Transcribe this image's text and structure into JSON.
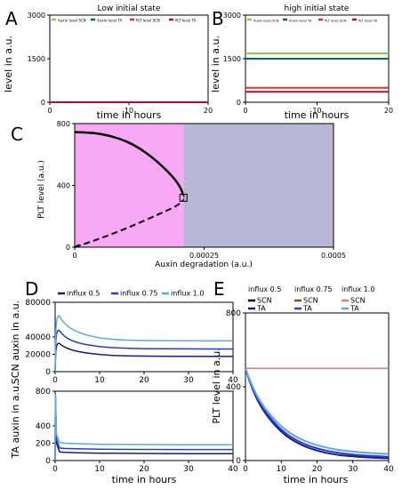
{
  "figure": {
    "panel_letters": [
      "A",
      "B",
      "C",
      "D",
      "E"
    ],
    "colors": {
      "auxin_scn": "#8cc63f",
      "auxin_ta": "#006b5a",
      "plt_scn": "#e8302a",
      "plt_ta": "#b01020",
      "region_left": "#f9a8f4",
      "region_right": "#b8b8d6",
      "influx_05": "#1a1a80",
      "influx_075": "#2a3ad0",
      "influx_10": "#5aa8e8",
      "scn_05": "#000000",
      "scn_075": "#7a4a2a",
      "scn_10": "#e87a7a"
    }
  },
  "chart_data": [
    {
      "panel": "A",
      "type": "line",
      "title": "Low initial state",
      "xlabel": "time in hours",
      "ylabel": "level in a.u.",
      "xlim": [
        0,
        20
      ],
      "ylim": [
        0,
        3000
      ],
      "xticks": [
        "0",
        "10",
        "20"
      ],
      "yticks": [
        "0",
        "1500",
        "3000"
      ],
      "legend": [
        "Auxin level SCN",
        "Auxin level TA",
        "PLT level SCN",
        "PLT level TA"
      ],
      "series": [
        {
          "name": "Auxin level SCN",
          "x": [
            0,
            20
          ],
          "values": [
            0,
            0
          ]
        },
        {
          "name": "Auxin level TA",
          "x": [
            0,
            20
          ],
          "values": [
            0,
            0
          ]
        },
        {
          "name": "PLT level SCN",
          "x": [
            0,
            20
          ],
          "values": [
            0,
            0
          ]
        },
        {
          "name": "PLT level TA",
          "x": [
            0,
            20
          ],
          "values": [
            0,
            0
          ]
        }
      ]
    },
    {
      "panel": "B",
      "type": "line",
      "title": "high initial state",
      "xlabel": "time in hours",
      "ylabel": "level in a.u.",
      "xlim": [
        0,
        20
      ],
      "ylim": [
        0,
        3000
      ],
      "xticks": [
        "0",
        "10",
        "20"
      ],
      "yticks": [
        "0",
        "1500",
        "3000"
      ],
      "legend": [
        "Auxin level SCN",
        "Auxin level TA",
        "PLT level SCN",
        "PLT level TA"
      ],
      "series": [
        {
          "name": "Auxin level SCN",
          "x": [
            0,
            20
          ],
          "values": [
            1680,
            1680
          ]
        },
        {
          "name": "Auxin level TA",
          "x": [
            0,
            20
          ],
          "values": [
            1500,
            1500
          ]
        },
        {
          "name": "PLT level SCN",
          "x": [
            0,
            20
          ],
          "values": [
            500,
            500
          ]
        },
        {
          "name": "PLT level TA",
          "x": [
            0,
            20
          ],
          "values": [
            360,
            360
          ]
        }
      ]
    },
    {
      "panel": "C",
      "type": "line",
      "xlabel": "Auxin degradation (a.u.)",
      "ylabel": "PLT level (a.u.)",
      "xlim": [
        0,
        0.0005
      ],
      "ylim": [
        0,
        800
      ],
      "xticks": [
        "0",
        "0.00025",
        "0.0005"
      ],
      "yticks": [
        "0",
        "400",
        "800"
      ],
      "region_boundary": 0.00021,
      "stable_branch": {
        "x": [
          0,
          4e-05,
          8e-05,
          0.00012,
          0.00016,
          0.00019,
          0.000205,
          0.00021
        ],
        "values": [
          745,
          740,
          712,
          655,
          555,
          455,
          385,
          330
        ]
      },
      "unstable_branch": {
        "x": [
          0,
          4e-05,
          8e-05,
          0.00012,
          0.00016,
          0.00019,
          0.000205,
          0.00021
        ],
        "values": [
          0,
          45,
          95,
          150,
          210,
          255,
          285,
          310
        ]
      },
      "fold_point": {
        "x": 0.00021,
        "y": 320
      }
    },
    {
      "panel": "D-top",
      "type": "line",
      "ylabel": "SCN auxin in a.u.",
      "xlim": [
        0,
        40
      ],
      "ylim": [
        0,
        80000
      ],
      "xticks": [
        "0",
        "10",
        "20",
        "30",
        "40"
      ],
      "yticks": [
        "0",
        "20000",
        "40000",
        "80000"
      ],
      "legend": [
        "influx 0.5",
        "influx 0.75",
        "influx 1.0"
      ],
      "series": [
        {
          "name": "influx 0.5",
          "x": [
            0,
            0.2,
            2,
            5,
            10,
            15,
            20,
            30,
            40
          ],
          "values": [
            0,
            36000,
            28000,
            23000,
            19500,
            18300,
            17800,
            17500,
            17500
          ]
        },
        {
          "name": "influx 0.75",
          "x": [
            0,
            0.2,
            2,
            5,
            10,
            15,
            20,
            30,
            40
          ],
          "values": [
            0,
            53000,
            40000,
            33000,
            28500,
            27000,
            26500,
            26200,
            26200
          ]
        },
        {
          "name": "influx 1.0",
          "x": [
            0,
            0.2,
            2,
            5,
            10,
            15,
            20,
            30,
            40
          ],
          "values": [
            0,
            71000,
            55000,
            45000,
            38500,
            36500,
            35800,
            35500,
            35500
          ]
        }
      ]
    },
    {
      "panel": "D-bottom",
      "type": "line",
      "xlabel": "time in hours",
      "ylabel": "TA auxin in a.u.",
      "xlim": [
        0,
        40
      ],
      "ylim": [
        0,
        800
      ],
      "xticks": [
        "0",
        "10",
        "20",
        "30",
        "40"
      ],
      "yticks": [
        "0",
        "200",
        "400",
        "800"
      ],
      "series": [
        {
          "name": "influx 0.5",
          "x": [
            0,
            0.05,
            0.3,
            1,
            2,
            5,
            10,
            20,
            30,
            40
          ],
          "values": [
            0,
            760,
            200,
            100,
            95,
            90,
            85,
            82,
            80,
            80
          ]
        },
        {
          "name": "influx 0.75",
          "x": [
            0,
            0.05,
            0.3,
            1,
            2,
            5,
            10,
            20,
            30,
            40
          ],
          "values": [
            0,
            760,
            250,
            145,
            140,
            135,
            130,
            128,
            127,
            127
          ]
        },
        {
          "name": "influx 1.0",
          "x": [
            0,
            0.05,
            0.3,
            1,
            2,
            5,
            10,
            20,
            30,
            40
          ],
          "values": [
            0,
            760,
            300,
            210,
            200,
            195,
            188,
            185,
            183,
            182
          ]
        }
      ]
    },
    {
      "panel": "E",
      "type": "line",
      "xlabel": "time in hours",
      "ylabel": "PLT level in a.u.",
      "xlim": [
        0,
        40
      ],
      "ylim": [
        0,
        800
      ],
      "xticks": [
        "0",
        "10",
        "20",
        "30",
        "40"
      ],
      "yticks": [
        "0",
        "400",
        "800"
      ],
      "legend_groups": [
        {
          "title": "influx 0.5",
          "entries": [
            "SCN",
            "TA"
          ]
        },
        {
          "title": "influx 0.75",
          "entries": [
            "SCN",
            "TA"
          ]
        },
        {
          "title": "influx 1.0",
          "entries": [
            "SCN",
            "TA"
          ]
        }
      ],
      "series": [
        {
          "name": "SCN influx 0.5",
          "x": [
            0,
            40
          ],
          "values": [
            500,
            500
          ]
        },
        {
          "name": "SCN influx 0.75",
          "x": [
            0,
            40
          ],
          "values": [
            500,
            500
          ]
        },
        {
          "name": "SCN influx 1.0",
          "x": [
            0,
            40
          ],
          "values": [
            500,
            500
          ]
        },
        {
          "name": "TA influx 0.5",
          "x": [
            0,
            2,
            5,
            10,
            15,
            20,
            25,
            30,
            35,
            40
          ],
          "values": [
            500,
            380,
            265,
            150,
            88,
            52,
            32,
            22,
            16,
            12
          ]
        },
        {
          "name": "TA influx 0.75",
          "x": [
            0,
            2,
            5,
            10,
            15,
            20,
            25,
            30,
            35,
            40
          ],
          "values": [
            500,
            385,
            275,
            162,
            100,
            64,
            44,
            32,
            25,
            20
          ]
        },
        {
          "name": "TA influx 1.0",
          "x": [
            0,
            2,
            5,
            10,
            15,
            20,
            25,
            30,
            35,
            40
          ],
          "values": [
            500,
            395,
            290,
            180,
            118,
            82,
            60,
            48,
            40,
            36
          ]
        }
      ]
    }
  ]
}
